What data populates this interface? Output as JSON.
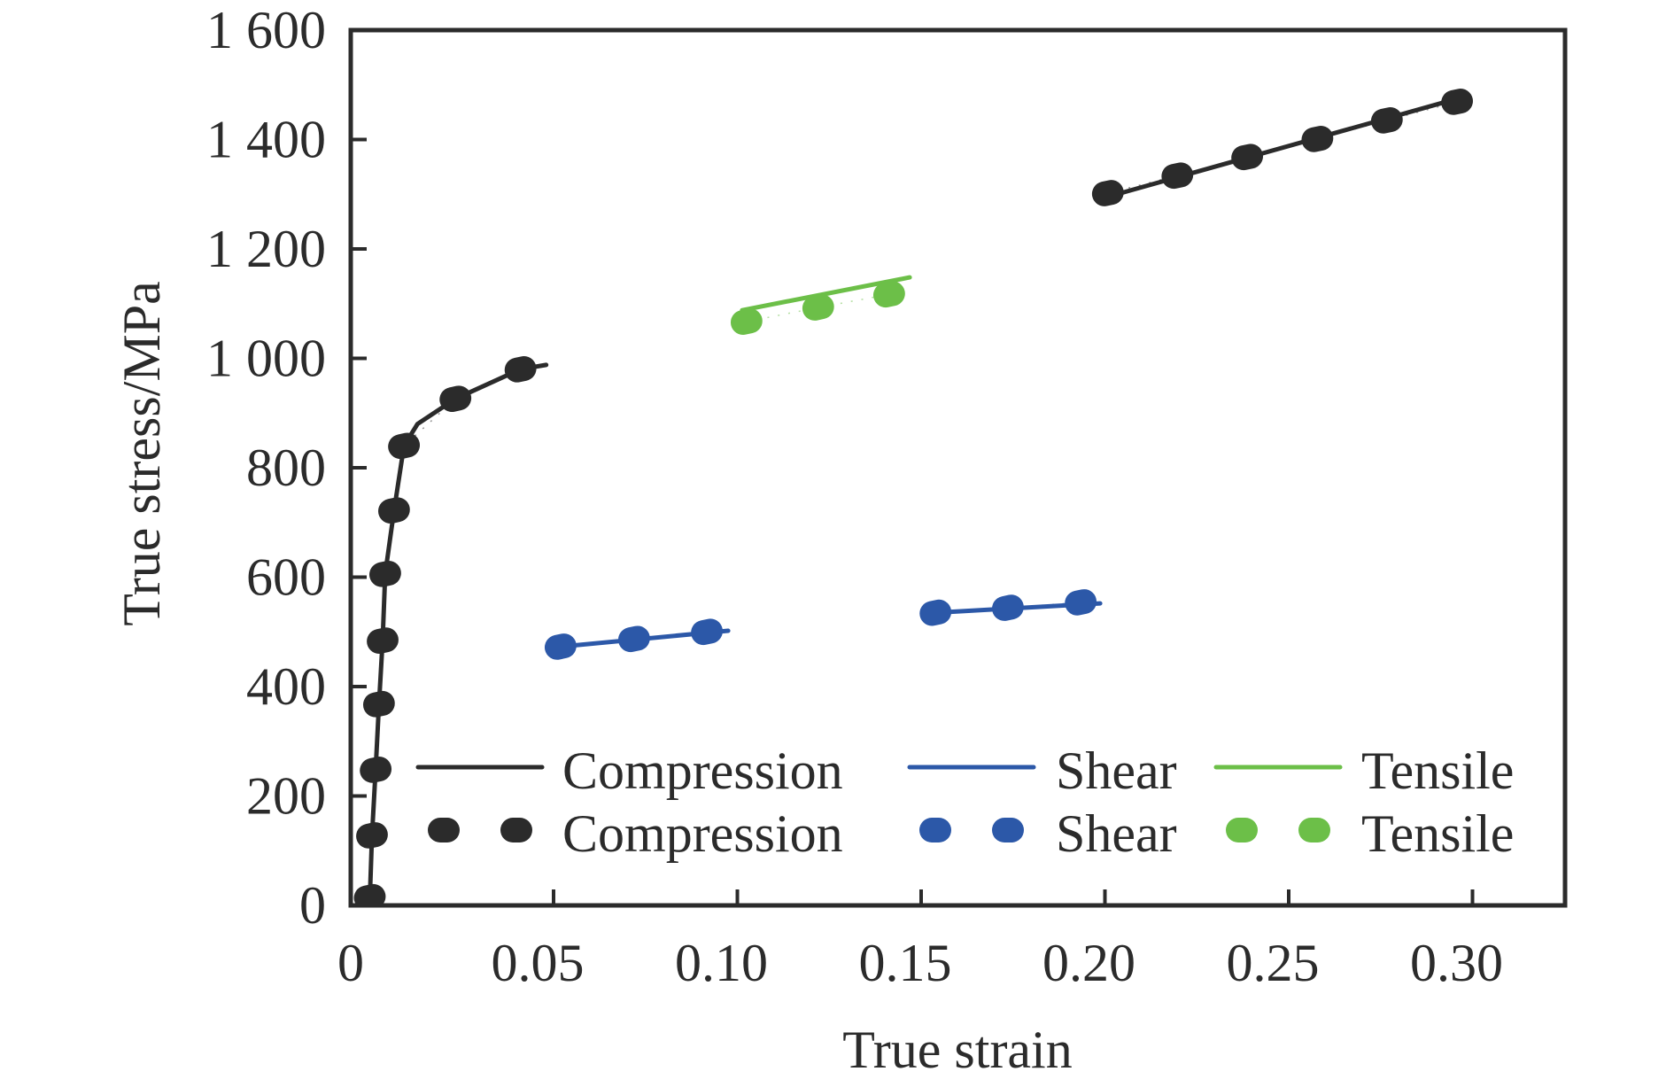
{
  "chart_data": {
    "type": "line",
    "title": "",
    "xlabel": "True strain",
    "ylabel": "True stress/MPa",
    "xlim": [
      0,
      0.32
    ],
    "ylim": [
      0,
      1600
    ],
    "xticks": [
      0,
      0.05,
      0.1,
      0.15,
      0.2,
      0.25,
      0.3
    ],
    "xtick_labels": [
      "0",
      "0.05",
      "0.10",
      "0.15",
      "0.20",
      "0.25",
      "0.30"
    ],
    "yticks": [
      0,
      200,
      400,
      600,
      800,
      1000,
      1200,
      1400,
      1600
    ],
    "ytick_labels": [
      "0",
      "200",
      "400",
      "600",
      "800",
      "1 000",
      "1 200",
      "1 400",
      "1 600"
    ],
    "grid": false,
    "legend_position": "bottom-center, inside plot",
    "colors": {
      "compression": "#2b2b2b",
      "shear": "#2c58a8",
      "tensile": "#6cbf48",
      "axis": "#2b2b2b"
    },
    "series": [
      {
        "name": "Compression",
        "style": "line",
        "color_key": "compression",
        "segments": [
          {
            "x": [
              0.0,
              0.0006,
              0.0016,
              0.0025,
              0.0035,
              0.0042,
              0.0066,
              0.0093,
              0.013,
              0.0233,
              0.041,
              0.048
            ],
            "y": [
              10,
              128,
              248,
              368,
              484,
              606,
              722,
              840,
              880,
              926,
              980,
              988
            ]
          },
          {
            "x": [
              0.199,
              0.296
            ],
            "y": [
              1292,
              1475
            ]
          }
        ]
      },
      {
        "name": "Compression",
        "style": "markers",
        "color_key": "compression",
        "segments": [
          {
            "x": [
              0.0,
              0.0006,
              0.0016,
              0.0025,
              0.0035,
              0.0042,
              0.0066,
              0.0093,
              0.0233,
              0.041
            ],
            "y": [
              15,
              128,
              248,
              368,
              484,
              606,
              722,
              840,
              926,
              980
            ]
          },
          {
            "x": [
              0.2008,
              0.2197,
              0.2387,
              0.2578,
              0.2767,
              0.2958
            ],
            "y": [
              1302,
              1334,
              1368,
              1401,
              1435,
              1469
            ]
          }
        ]
      },
      {
        "name": "Shear",
        "style": "line",
        "color_key": "shear",
        "segments": [
          {
            "x": [
              0.0519,
              0.0975
            ],
            "y": [
              473,
              502
            ]
          },
          {
            "x": [
              0.1539,
              0.1987
            ],
            "y": [
              535,
              552
            ]
          }
        ]
      },
      {
        "name": "Shear",
        "style": "markers",
        "color_key": "shear",
        "segments": [
          {
            "x": [
              0.0519,
              0.0719,
              0.0917
            ],
            "y": [
              473,
              487,
              500
            ]
          },
          {
            "x": [
              0.1539,
              0.1736,
              0.1934
            ],
            "y": [
              535,
              544,
              554
            ]
          }
        ]
      },
      {
        "name": "Tensile",
        "style": "line",
        "color_key": "tensile",
        "segments": [
          {
            "x": [
              0.1013,
              0.1469
            ],
            "y": [
              1088,
              1148
            ]
          }
        ]
      },
      {
        "name": "Tensile",
        "style": "markers",
        "color_key": "tensile",
        "segments": [
          {
            "x": [
              0.1025,
              0.122,
              0.1413
            ],
            "y": [
              1067,
              1093,
              1117
            ]
          }
        ]
      }
    ],
    "legend": [
      {
        "label": "Compression",
        "style": "line",
        "color_key": "compression"
      },
      {
        "label": "Shear",
        "style": "line",
        "color_key": "shear"
      },
      {
        "label": "Tensile",
        "style": "line",
        "color_key": "tensile"
      },
      {
        "label": "Compression",
        "style": "markers",
        "color_key": "compression"
      },
      {
        "label": "Shear",
        "style": "markers",
        "color_key": "shear"
      },
      {
        "label": "Tensile",
        "style": "markers",
        "color_key": "tensile"
      }
    ]
  }
}
